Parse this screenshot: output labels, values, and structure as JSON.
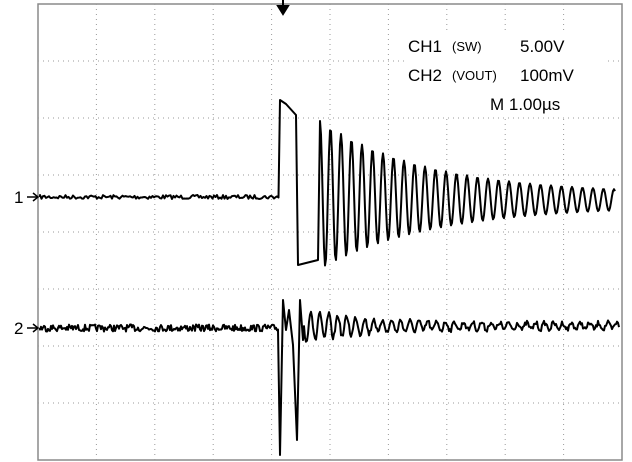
{
  "markers": {
    "ch1": "1",
    "ch2": "2"
  },
  "readout": {
    "ch1": {
      "name": "CH1",
      "source": "(SW)",
      "scale": "5.00V"
    },
    "ch2": {
      "name": "CH2",
      "source": "(VOUT)",
      "scale": "100mV"
    },
    "time": "M 1.00µs"
  }
}
